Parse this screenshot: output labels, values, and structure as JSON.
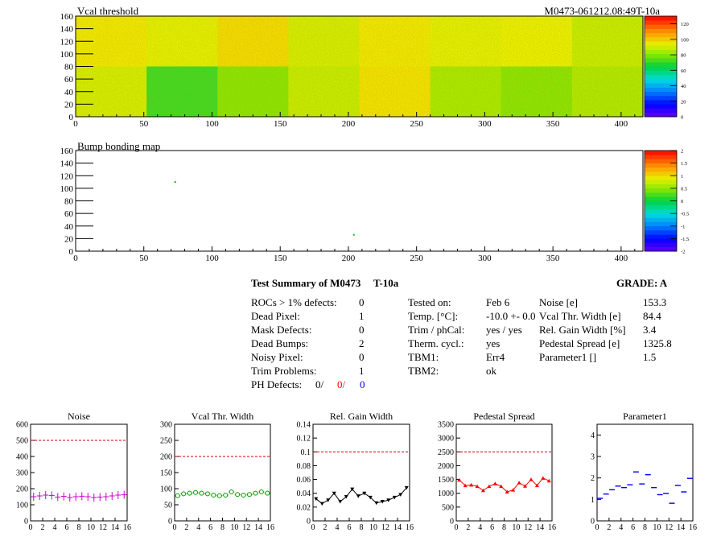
{
  "chart_data": [
    {
      "type": "heatmap",
      "title": "Vcal threshold",
      "module_label": "M0473-061212.08:49T-10a",
      "xlim": [
        0,
        416
      ],
      "ylim": [
        0,
        160
      ],
      "xticks": [
        0,
        50,
        100,
        150,
        200,
        250,
        300,
        350,
        400
      ],
      "yticks": [
        0,
        20,
        40,
        60,
        80,
        100,
        120,
        140,
        160
      ],
      "zlim": [
        0,
        130
      ],
      "zticks": [
        0,
        20,
        40,
        60,
        80,
        100,
        120
      ],
      "roc_means_top": [
        95,
        92,
        97,
        90,
        95,
        92,
        93,
        88
      ],
      "roc_means_bottom": [
        90,
        72,
        80,
        88,
        96,
        84,
        80,
        85
      ]
    },
    {
      "type": "heatmap",
      "title": "Bump bonding map",
      "xlim": [
        0,
        416
      ],
      "ylim": [
        0,
        160
      ],
      "xticks": [
        0,
        50,
        100,
        150,
        200,
        250,
        300,
        350,
        400
      ],
      "yticks": [
        0,
        20,
        40,
        60,
        80,
        100,
        120,
        140,
        160
      ],
      "zlim": [
        -2,
        2
      ],
      "zticks": [
        -2,
        -1.5,
        -1,
        -0.5,
        0,
        0.5,
        1,
        1.5,
        2
      ],
      "points": [
        {
          "x": 73,
          "y": 110
        },
        {
          "x": 204,
          "y": 26
        }
      ]
    },
    {
      "type": "scatter",
      "title": "Noise",
      "xlim": [
        0,
        16
      ],
      "ylim": [
        0,
        600
      ],
      "xticks": [
        0,
        2,
        4,
        6,
        8,
        10,
        12,
        14,
        16
      ],
      "yticks": [
        0,
        100,
        200,
        300,
        400,
        500,
        600
      ],
      "cut": 500,
      "color": "#cc00cc",
      "marker": "cross",
      "values": [
        150,
        155,
        160,
        158,
        148,
        152,
        145,
        150,
        153,
        150,
        145,
        148,
        150,
        155,
        160,
        162
      ]
    },
    {
      "type": "scatter",
      "title": "Vcal Thr. Width",
      "xlim": [
        0,
        16
      ],
      "ylim": [
        0,
        300
      ],
      "xticks": [
        0,
        2,
        4,
        6,
        8,
        10,
        12,
        14,
        16
      ],
      "yticks": [
        0,
        50,
        100,
        150,
        200,
        250,
        300
      ],
      "cut": 200,
      "color": "#00a000",
      "marker": "circle",
      "values": [
        78,
        84,
        86,
        88,
        86,
        84,
        80,
        78,
        80,
        90,
        82,
        80,
        82,
        86,
        90,
        86
      ]
    },
    {
      "type": "line",
      "title": "Rel. Gain Width",
      "xlim": [
        0,
        16
      ],
      "ylim": [
        0,
        0.14
      ],
      "xticks": [
        0,
        2,
        4,
        6,
        8,
        10,
        12,
        14,
        16
      ],
      "yticks": [
        0,
        0.02,
        0.04,
        0.06,
        0.08,
        0.1,
        0.12,
        0.14
      ],
      "cut": 0.1,
      "color": "#000000",
      "marker": "triangle-down",
      "values": [
        0.032,
        0.025,
        0.03,
        0.04,
        0.028,
        0.035,
        0.046,
        0.036,
        0.04,
        0.034,
        0.026,
        0.028,
        0.03,
        0.034,
        0.038,
        0.048
      ]
    },
    {
      "type": "line",
      "title": "Pedestal Spread",
      "xlim": [
        0,
        16
      ],
      "ylim": [
        0,
        3500
      ],
      "xticks": [
        0,
        2,
        4,
        6,
        8,
        10,
        12,
        14,
        16
      ],
      "yticks": [
        0,
        500,
        1000,
        1500,
        2000,
        2500,
        3000,
        3500
      ],
      "cut": 2500,
      "color": "#ff0000",
      "marker": "triangle-up",
      "values": [
        1480,
        1280,
        1300,
        1250,
        1100,
        1250,
        1350,
        1250,
        1050,
        1120,
        1380,
        1260,
        1500,
        1280,
        1550,
        1450
      ]
    },
    {
      "type": "scatter",
      "title": "Parameter1",
      "xlim": [
        0,
        16
      ],
      "ylim": [
        0,
        4.5
      ],
      "xticks": [
        0,
        2,
        4,
        6,
        8,
        10,
        12,
        14,
        16
      ],
      "yticks": [
        0,
        1,
        2,
        3,
        4
      ],
      "color": "#0000ff",
      "marker": "hbar",
      "values": [
        1.05,
        1.25,
        1.45,
        1.62,
        1.55,
        1.68,
        2.28,
        1.72,
        2.15,
        1.55,
        1.22,
        1.28,
        0.82,
        1.65,
        1.35,
        1.98
      ]
    }
  ],
  "summary": {
    "title": "Test Summary of M0473",
    "test_label": "T-10a",
    "grade": "GRADE:  A",
    "defects": [
      {
        "label": "ROCs > 1% defects:",
        "value": "0"
      },
      {
        "label": "Dead Pixel:",
        "value": "1"
      },
      {
        "label": "Mask Defects:",
        "value": "0"
      },
      {
        "label": "Dead Bumps:",
        "value": "2"
      },
      {
        "label": "Noisy Pixel:",
        "value": "0"
      },
      {
        "label": "Trim Problems:",
        "value": "1"
      }
    ],
    "ph_defects": {
      "label": "PH Defects:",
      "v1": "0/",
      "v2": "0/",
      "v3": "0"
    },
    "conditions": [
      {
        "label": "Tested on:",
        "value": "Feb 6"
      },
      {
        "label": "Temp. [°C]:",
        "value": "-10.0 +- 0.0"
      },
      {
        "label": "Trim / phCal:",
        "value": "yes / yes"
      },
      {
        "label": "Therm. cycl.:",
        "value": "yes"
      },
      {
        "label": "TBM1:",
        "value": "Err4"
      },
      {
        "label": "TBM2:",
        "value": "ok"
      }
    ],
    "results": [
      {
        "label": "Noise [e]",
        "value": "153.3"
      },
      {
        "label": "Vcal Thr. Width [e]",
        "value": "84.4"
      },
      {
        "label": "Rel. Gain Width [%]",
        "value": "3.4"
      },
      {
        "label": "Pedestal Spread [e]",
        "value": "1325.8"
      },
      {
        "label": "Parameter1 []",
        "value": "1.5"
      }
    ]
  }
}
